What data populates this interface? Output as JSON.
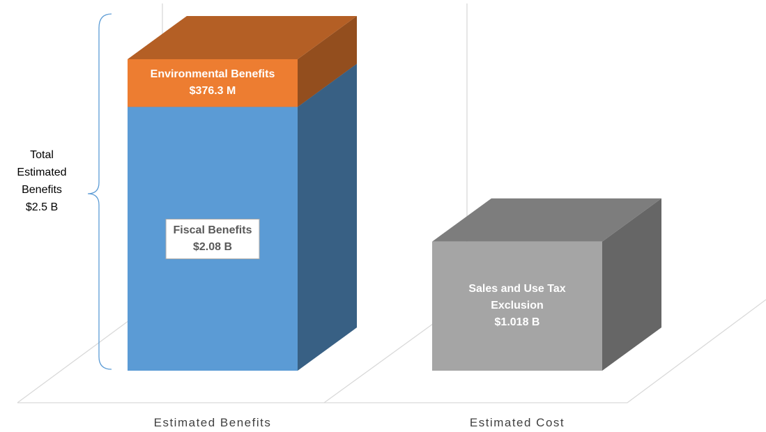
{
  "chart_data": {
    "type": "bar3d-stacked",
    "categories": [
      "Estimated Benefits",
      "Estimated Cost"
    ],
    "series": [
      {
        "name": "Fiscal Benefits",
        "color": "#5b9bd5",
        "values": [
          2.08,
          null
        ],
        "value_labels": [
          "$2.08 B",
          null
        ]
      },
      {
        "name": "Environmental Benefits",
        "color": "#ed7d31",
        "values": [
          0.3763,
          null
        ],
        "value_labels": [
          "$376.3 M",
          null
        ]
      },
      {
        "name": "Sales and Use Tax Exclusion",
        "color": "#a5a5a5",
        "values": [
          null,
          1.018
        ],
        "value_labels": [
          null,
          "$1.018 B"
        ]
      }
    ],
    "annotation": [
      "Total",
      "Estimated",
      "Benefits",
      "$2.5 B"
    ]
  }
}
